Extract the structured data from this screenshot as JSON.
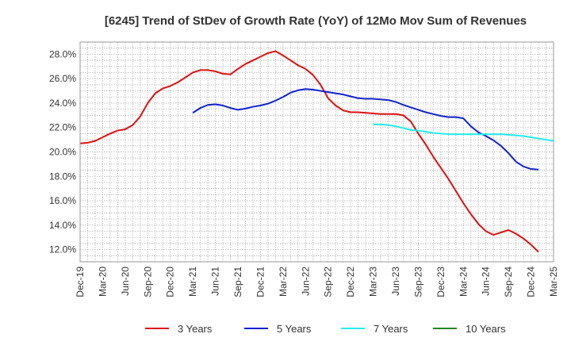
{
  "chart_data": {
    "type": "line",
    "title": "[6245]  Trend of StDev of Growth Rate (YoY) of 12Mo Mov Sum of Revenues",
    "xlabel": "",
    "ylabel": "",
    "ylim": [
      11.0,
      29.0
    ],
    "y_ticks": [
      12,
      14,
      16,
      18,
      20,
      22,
      24,
      26,
      28
    ],
    "y_tick_labels": [
      "12.0%",
      "14.0%",
      "16.0%",
      "18.0%",
      "20.0%",
      "22.0%",
      "24.0%",
      "26.0%",
      "28.0%"
    ],
    "x_tick_labels": [
      "Dec-19",
      "Mar-20",
      "Jun-20",
      "Sep-20",
      "Dec-20",
      "Mar-21",
      "Jun-21",
      "Sep-21",
      "Dec-21",
      "Mar-22",
      "Jun-22",
      "Sep-22",
      "Dec-22",
      "Mar-23",
      "Jun-23",
      "Sep-23",
      "Dec-23",
      "Mar-24",
      "Jun-24",
      "Sep-24",
      "Dec-24",
      "Mar-25"
    ],
    "grid": true,
    "legend_position": "bottom",
    "series": [
      {
        "name": "3 Years",
        "color": "#dd1111",
        "start_month": 0,
        "values": [
          20.7,
          20.75,
          20.9,
          21.2,
          21.5,
          21.75,
          21.85,
          22.2,
          22.9,
          24.0,
          24.8,
          25.2,
          25.4,
          25.7,
          26.1,
          26.5,
          26.7,
          26.7,
          26.6,
          26.4,
          26.35,
          26.8,
          27.2,
          27.5,
          27.8,
          28.1,
          28.25,
          27.9,
          27.5,
          27.1,
          26.8,
          26.3,
          25.5,
          24.4,
          23.8,
          23.4,
          23.25,
          23.25,
          23.2,
          23.15,
          23.1,
          23.1,
          23.1,
          23.0,
          22.5,
          21.5,
          20.6,
          19.6,
          18.7,
          17.8,
          16.8,
          15.8,
          14.9,
          14.1,
          13.5,
          13.2,
          13.4,
          13.6,
          13.3,
          12.9,
          12.4,
          11.8
        ]
      },
      {
        "name": "5 Years",
        "color": "#1122cc",
        "start_month": 15,
        "values": [
          23.2,
          23.6,
          23.85,
          23.9,
          23.8,
          23.6,
          23.45,
          23.55,
          23.7,
          23.8,
          23.95,
          24.2,
          24.5,
          24.85,
          25.05,
          25.15,
          25.1,
          25.0,
          24.9,
          24.8,
          24.7,
          24.55,
          24.4,
          24.35,
          24.35,
          24.3,
          24.25,
          24.1,
          23.85,
          23.65,
          23.45,
          23.25,
          23.1,
          22.95,
          22.85,
          22.85,
          22.75,
          22.1,
          21.6,
          21.3,
          20.95,
          20.5,
          19.9,
          19.2,
          18.8,
          18.6,
          18.55
        ]
      },
      {
        "name": "7 Years",
        "color": "#22eeee",
        "start_month": 39,
        "values": [
          22.25,
          22.25,
          22.2,
          22.1,
          21.95,
          21.8,
          21.75,
          21.65,
          21.55,
          21.5,
          21.45,
          21.45,
          21.45,
          21.45,
          21.45,
          21.45,
          21.45,
          21.45,
          21.4,
          21.35,
          21.3,
          21.2,
          21.1,
          21.0,
          20.9
        ]
      },
      {
        "name": "10 Years",
        "color": "#228822",
        "start_month": 0,
        "values": []
      }
    ]
  }
}
